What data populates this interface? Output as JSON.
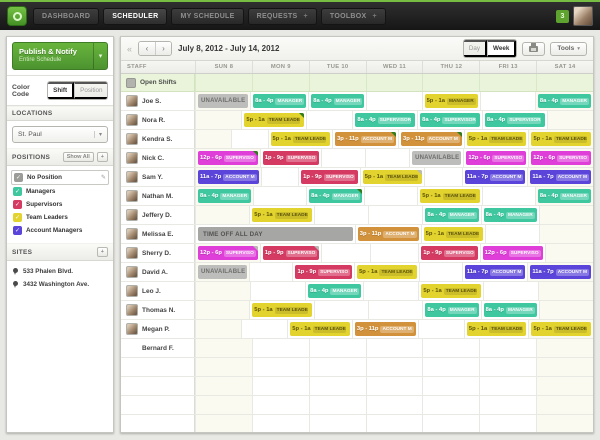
{
  "topbar": {
    "nav": [
      {
        "label": "DASHBOARD",
        "active": false,
        "plus": false
      },
      {
        "label": "SCHEDULER",
        "active": true,
        "plus": false
      },
      {
        "label": "MY SCHEDULE",
        "active": false,
        "plus": false
      },
      {
        "label": "REQUESTS",
        "active": false,
        "plus": true
      },
      {
        "label": "TOOLBOX",
        "active": false,
        "plus": true
      }
    ],
    "notification_count": "3"
  },
  "sidebar": {
    "publish": {
      "label": "Publish & Notify",
      "sublabel": "Entire Schedule"
    },
    "color_code": {
      "label": "Color Code",
      "options": [
        {
          "label": "Shift",
          "active": true
        },
        {
          "label": "Position",
          "active": false
        }
      ]
    },
    "locations": {
      "header": "LOCATIONS",
      "selected": "St. Paul"
    },
    "positions": {
      "header": "POSITIONS",
      "show_all_label": "Show All",
      "add_label": "+",
      "items": [
        {
          "label": "No Position",
          "color": "#9b9b97",
          "selected": true
        },
        {
          "label": "Managers",
          "color": "#3fc7a0",
          "selected": false
        },
        {
          "label": "Supervisors",
          "color": "#d53a62",
          "selected": false
        },
        {
          "label": "Team Leaders",
          "color": "#e2d32f",
          "selected": false
        },
        {
          "label": "Account Managers",
          "color": "#5b44d9",
          "selected": false
        }
      ]
    },
    "sites": {
      "header": "SITES",
      "add_label": "+",
      "items": [
        "533 Phalen Blvd.",
        "3432 Washington Ave."
      ]
    }
  },
  "toolbar": {
    "date_range": "July 8, 2012 - July 14, 2012",
    "views": [
      {
        "label": "Day",
        "active": false
      },
      {
        "label": "Week",
        "active": true
      }
    ],
    "tools_label": "Tools"
  },
  "grid": {
    "staff_header": "STAFF",
    "days": [
      "SUN 8",
      "MON 9",
      "TUE 10",
      "WED 11",
      "THU 12",
      "FRI 13",
      "SAT 14"
    ],
    "open_shifts_label": "Open Shifts",
    "colors": {
      "teal": "#3fc7a0",
      "yellow": "#e2d32f",
      "orange": "#d2923c",
      "magenta": "#df3ed8",
      "crimson": "#d53a62",
      "purple": "#5b44d9",
      "corner_green": "#2f7d1d",
      "corner_gray": "#b9b9b5"
    },
    "empty_rows": 4,
    "rows": [
      {
        "name": "Joe S.",
        "has_avatar": true,
        "cells": [
          {
            "type": "unavailable",
            "label": "UNAVAILABLE"
          },
          {
            "type": "shift",
            "time": "8a - 4p",
            "role": "MANAGER",
            "color": "teal"
          },
          {
            "type": "shift",
            "time": "8a - 4p",
            "role": "MANAGER",
            "color": "teal"
          },
          null,
          {
            "type": "shift",
            "time": "5p - 1a",
            "role": "MANAGER",
            "color": "yellow"
          },
          null,
          {
            "type": "shift",
            "time": "8a - 4p",
            "role": "MANAGER",
            "color": "teal"
          }
        ]
      },
      {
        "name": "Nora R.",
        "has_avatar": true,
        "cells": [
          null,
          {
            "type": "shift",
            "time": "5p - 1a",
            "role": "TEAM LEADE",
            "color": "yellow",
            "corner": "green"
          },
          null,
          {
            "type": "shift",
            "time": "8a - 4p",
            "role": "SUPERVISOR",
            "color": "teal"
          },
          {
            "type": "shift",
            "time": "8a - 4p",
            "role": "SUPERVISOR",
            "color": "teal"
          },
          {
            "type": "shift",
            "time": "8a - 4p",
            "role": "SUPERVISOR",
            "color": "teal"
          },
          null
        ]
      },
      {
        "name": "Kendra S.",
        "has_avatar": true,
        "cells": [
          null,
          null,
          {
            "type": "shift",
            "time": "5p - 1a",
            "role": "TEAM LEADE",
            "color": "yellow"
          },
          {
            "type": "shift",
            "time": "3p - 11p",
            "role": "ACCOUNT M",
            "color": "orange",
            "corner": "green"
          },
          {
            "type": "shift",
            "time": "3p - 11p",
            "role": "ACCOUNT M",
            "color": "orange",
            "corner": "green"
          },
          {
            "type": "shift",
            "time": "5p - 1a",
            "role": "TEAM LEADE",
            "color": "yellow"
          },
          {
            "type": "shift",
            "time": "5p - 1a",
            "role": "TEAM LEADE",
            "color": "yellow"
          }
        ]
      },
      {
        "name": "Nick C.",
        "has_avatar": true,
        "cells": [
          {
            "type": "shift",
            "time": "12p - 6p",
            "role": "SUPERVISO",
            "color": "magenta",
            "corner": "green"
          },
          {
            "type": "shift",
            "time": "1p - 9p",
            "role": "SUPERVISO",
            "color": "crimson"
          },
          null,
          null,
          {
            "type": "unavailable",
            "label": "UNAVAILABLE"
          },
          {
            "type": "shift",
            "time": "12p - 6p",
            "role": "SUPERVISO",
            "color": "magenta"
          },
          {
            "type": "shift",
            "time": "12p - 6p",
            "role": "SUPERVISO",
            "color": "magenta"
          }
        ]
      },
      {
        "name": "Sam Y.",
        "has_avatar": true,
        "cells": [
          {
            "type": "shift",
            "time": "11a - 7p",
            "role": "ACCOUNT M",
            "color": "purple"
          },
          null,
          {
            "type": "shift",
            "time": "1p - 9p",
            "role": "SUPERVISO",
            "color": "crimson"
          },
          {
            "type": "shift",
            "time": "5p - 1a",
            "role": "TEAM LEADE",
            "color": "yellow",
            "corner": "gray"
          },
          null,
          {
            "type": "shift",
            "time": "11a - 7p",
            "role": "ACCOUNT M",
            "color": "purple"
          },
          {
            "type": "shift",
            "time": "11a - 7p",
            "role": "ACCOUNT M",
            "color": "purple"
          }
        ]
      },
      {
        "name": "Nathan M.",
        "has_avatar": true,
        "cells": [
          {
            "type": "shift",
            "time": "8a - 4p",
            "role": "MANAGER",
            "color": "teal"
          },
          null,
          {
            "type": "shift",
            "time": "8a - 4p",
            "role": "MANAGER",
            "color": "teal",
            "corner": "green"
          },
          null,
          {
            "type": "shift",
            "time": "5p - 1a",
            "role": "TEAM LEADE",
            "color": "yellow"
          },
          null,
          {
            "type": "shift",
            "time": "8a - 4p",
            "role": "MANAGER",
            "color": "teal"
          }
        ]
      },
      {
        "name": "Jeffery D.",
        "has_avatar": true,
        "cells": [
          null,
          {
            "type": "shift",
            "time": "5p - 1a",
            "role": "TEAM LEADE",
            "color": "yellow"
          },
          null,
          null,
          {
            "type": "shift",
            "time": "8a - 4p",
            "role": "MANAGER",
            "color": "teal"
          },
          {
            "type": "shift",
            "time": "8a - 4p",
            "role": "MANAGER",
            "color": "teal"
          },
          null
        ]
      },
      {
        "name": "Melissa E.",
        "has_avatar": true,
        "cells": [
          {
            "type": "timeoff",
            "label": "TIME OFF ALL DAY",
            "span": 3
          },
          {
            "type": "shift",
            "time": "3p - 11p",
            "role": "ACCOUNT M",
            "color": "orange"
          },
          {
            "type": "shift",
            "time": "5p - 1a",
            "role": "TEAM LEADE",
            "color": "yellow"
          },
          null,
          null
        ]
      },
      {
        "name": "Sherry D.",
        "has_avatar": true,
        "cells": [
          {
            "type": "shift",
            "time": "12p - 6p",
            "role": "SUPERVISO",
            "color": "magenta",
            "corner": "gray"
          },
          {
            "type": "shift",
            "time": "1p - 9p",
            "role": "SUPERVISO",
            "color": "crimson",
            "corner": "gray"
          },
          null,
          null,
          {
            "type": "shift",
            "time": "1p - 9p",
            "role": "SUPERVISO",
            "color": "crimson"
          },
          {
            "type": "shift",
            "time": "12p - 6p",
            "role": "SUPERVISO",
            "color": "magenta"
          },
          null
        ]
      },
      {
        "name": "David A.",
        "has_avatar": true,
        "cells": [
          {
            "type": "unavailable",
            "label": "UNAVAILABLE"
          },
          null,
          {
            "type": "shift",
            "time": "1p - 9p",
            "role": "SUPERVISO",
            "color": "crimson"
          },
          {
            "type": "shift",
            "time": "5p - 1a",
            "role": "TEAM LEADE",
            "color": "yellow"
          },
          null,
          {
            "type": "shift",
            "time": "11a - 7p",
            "role": "ACCOUNT M",
            "color": "purple"
          },
          {
            "type": "shift",
            "time": "11a - 7p",
            "role": "ACCOUNT M",
            "color": "purple"
          }
        ]
      },
      {
        "name": "Leo J.",
        "has_avatar": true,
        "cells": [
          null,
          null,
          {
            "type": "shift",
            "time": "8a - 4p",
            "role": "MANAGER",
            "color": "teal"
          },
          null,
          {
            "type": "shift",
            "time": "5p - 1a",
            "role": "TEAM LEADE",
            "color": "yellow"
          },
          null,
          null
        ]
      },
      {
        "name": "Thomas N.",
        "has_avatar": true,
        "cells": [
          null,
          {
            "type": "shift",
            "time": "5p - 1a",
            "role": "TEAM LEADE",
            "color": "yellow"
          },
          null,
          null,
          {
            "type": "shift",
            "time": "8a - 4p",
            "role": "MANAGER",
            "color": "teal"
          },
          {
            "type": "shift",
            "time": "8a - 4p",
            "role": "MANAGER",
            "color": "teal"
          },
          null
        ]
      },
      {
        "name": "Megan P.",
        "has_avatar": true,
        "cells": [
          null,
          null,
          {
            "type": "shift",
            "time": "5p - 1a",
            "role": "TEAM LEADE",
            "color": "yellow"
          },
          {
            "type": "shift",
            "time": "3p - 11p",
            "role": "ACCOUNT M",
            "color": "orange"
          },
          null,
          {
            "type": "shift",
            "time": "5p - 1a",
            "role": "TEAM LEADE",
            "color": "yellow"
          },
          {
            "type": "shift",
            "time": "5p - 1a",
            "role": "TEAM LEADE",
            "color": "yellow"
          }
        ]
      },
      {
        "name": "Bernard F.",
        "has_avatar": false,
        "cells": [
          null,
          null,
          null,
          null,
          null,
          null,
          null
        ]
      }
    ]
  }
}
